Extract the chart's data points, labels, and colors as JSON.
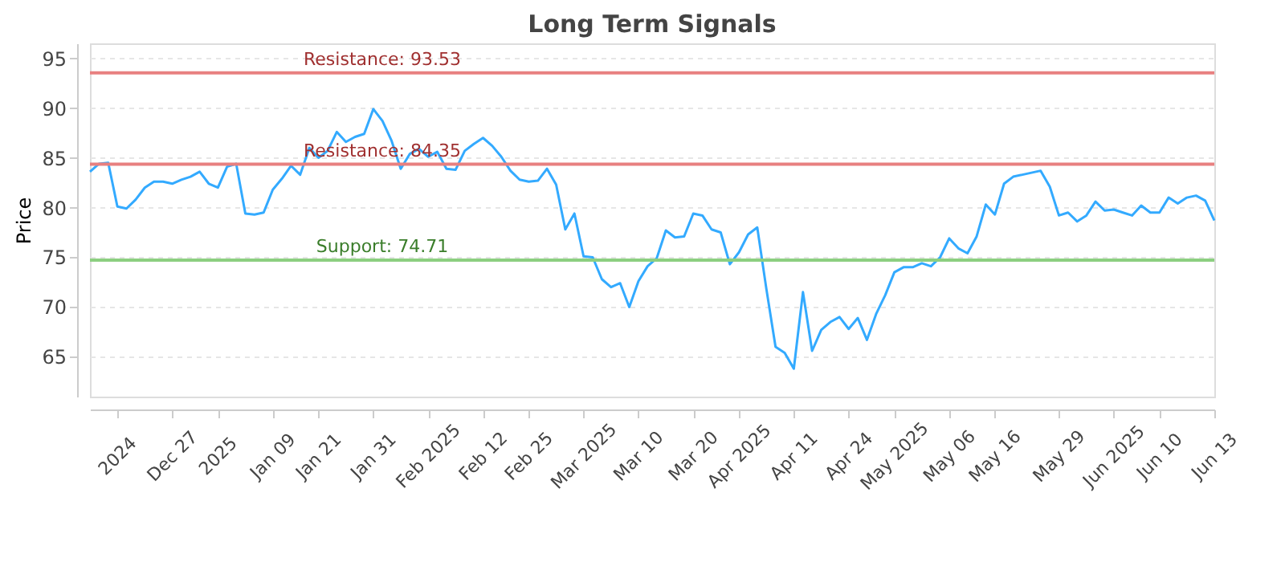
{
  "chart_data": {
    "type": "line",
    "title": "Long Term Signals",
    "ylabel": "Price",
    "categories": [
      null,
      null,
      null,
      "2024",
      null,
      null,
      null,
      null,
      null,
      "Dec 27",
      null,
      null,
      null,
      null,
      "2025",
      null,
      null,
      null,
      null,
      null,
      "Jan 09",
      null,
      null,
      null,
      null,
      "Jan 21",
      null,
      null,
      null,
      null,
      null,
      "Jan 31",
      null,
      null,
      null,
      null,
      null,
      "Feb 2025",
      null,
      null,
      null,
      null,
      null,
      "Feb 12",
      null,
      null,
      null,
      null,
      "Feb 25",
      null,
      null,
      null,
      null,
      null,
      "Mar 2025",
      null,
      null,
      null,
      null,
      null,
      "Mar 10",
      null,
      null,
      null,
      null,
      null,
      "Mar 20",
      null,
      null,
      null,
      null,
      "Apr 2025",
      null,
      null,
      null,
      null,
      null,
      "Apr 11",
      null,
      null,
      null,
      null,
      null,
      "Apr 24",
      null,
      null,
      null,
      null,
      "May 2025",
      null,
      null,
      null,
      null,
      null,
      "May 06",
      null,
      null,
      null,
      null,
      "May 16",
      null,
      null,
      null,
      null,
      null,
      null,
      "May 29",
      null,
      null,
      null,
      null,
      null,
      "Jun 2025",
      null,
      null,
      null,
      null,
      "Jun 10",
      null,
      null,
      null,
      null,
      null,
      "Jun 13"
    ],
    "series": [
      {
        "color": "#33aaff",
        "values": [
          83.6,
          84.4,
          84.5,
          80.1,
          79.9,
          80.8,
          82.0,
          82.6,
          82.6,
          82.4,
          82.8,
          83.1,
          83.6,
          82.4,
          82.0,
          84.1,
          84.4,
          79.4,
          79.3,
          79.5,
          81.8,
          82.9,
          84.2,
          83.3,
          86.0,
          85.0,
          85.7,
          87.6,
          86.6,
          87.1,
          87.4,
          89.9,
          88.7,
          86.7,
          83.9,
          85.4,
          85.9,
          85.1,
          85.6,
          83.9,
          83.8,
          85.7,
          86.4,
          87.0,
          86.2,
          85.1,
          83.7,
          82.8,
          82.6,
          82.7,
          83.9,
          82.3,
          77.8,
          79.4,
          75.1,
          75.0,
          72.8,
          72.0,
          72.4,
          70.0,
          72.6,
          74.1,
          74.9,
          77.7,
          77.0,
          77.1,
          79.4,
          79.2,
          77.8,
          77.5,
          74.3,
          75.5,
          77.3,
          78.0,
          71.8,
          66.0,
          65.4,
          63.8,
          71.5,
          65.6,
          67.7,
          68.5,
          69.0,
          67.8,
          68.9,
          66.7,
          69.3,
          71.2,
          73.5,
          74.0,
          74.0,
          74.4,
          74.1,
          75.0,
          76.9,
          75.9,
          75.4,
          77.1,
          80.3,
          79.3,
          82.4,
          83.1,
          83.3,
          83.5,
          83.7,
          82.1,
          79.2,
          79.5,
          78.6,
          79.2,
          80.6,
          79.7,
          79.8,
          79.5,
          79.2,
          80.2,
          79.5,
          79.5,
          81.0,
          80.4,
          81.0,
          81.2,
          80.7,
          78.7
        ]
      }
    ],
    "ylim": [
      61,
      96.5
    ],
    "yticks": [
      65,
      70,
      75,
      80,
      85,
      90,
      95
    ],
    "ref_lines": [
      {
        "axis": "y",
        "value": 93.53,
        "label": "Resistance: 93.53",
        "color": "#e88080"
      },
      {
        "axis": "y",
        "value": 84.35,
        "label": "Resistance: 84.35",
        "color": "#e88080"
      },
      {
        "axis": "y",
        "value": 74.71,
        "label": "Support: 74.71",
        "color": "#8ccf80"
      }
    ],
    "grid": "y",
    "marker": "none",
    "line_style": "solid"
  }
}
